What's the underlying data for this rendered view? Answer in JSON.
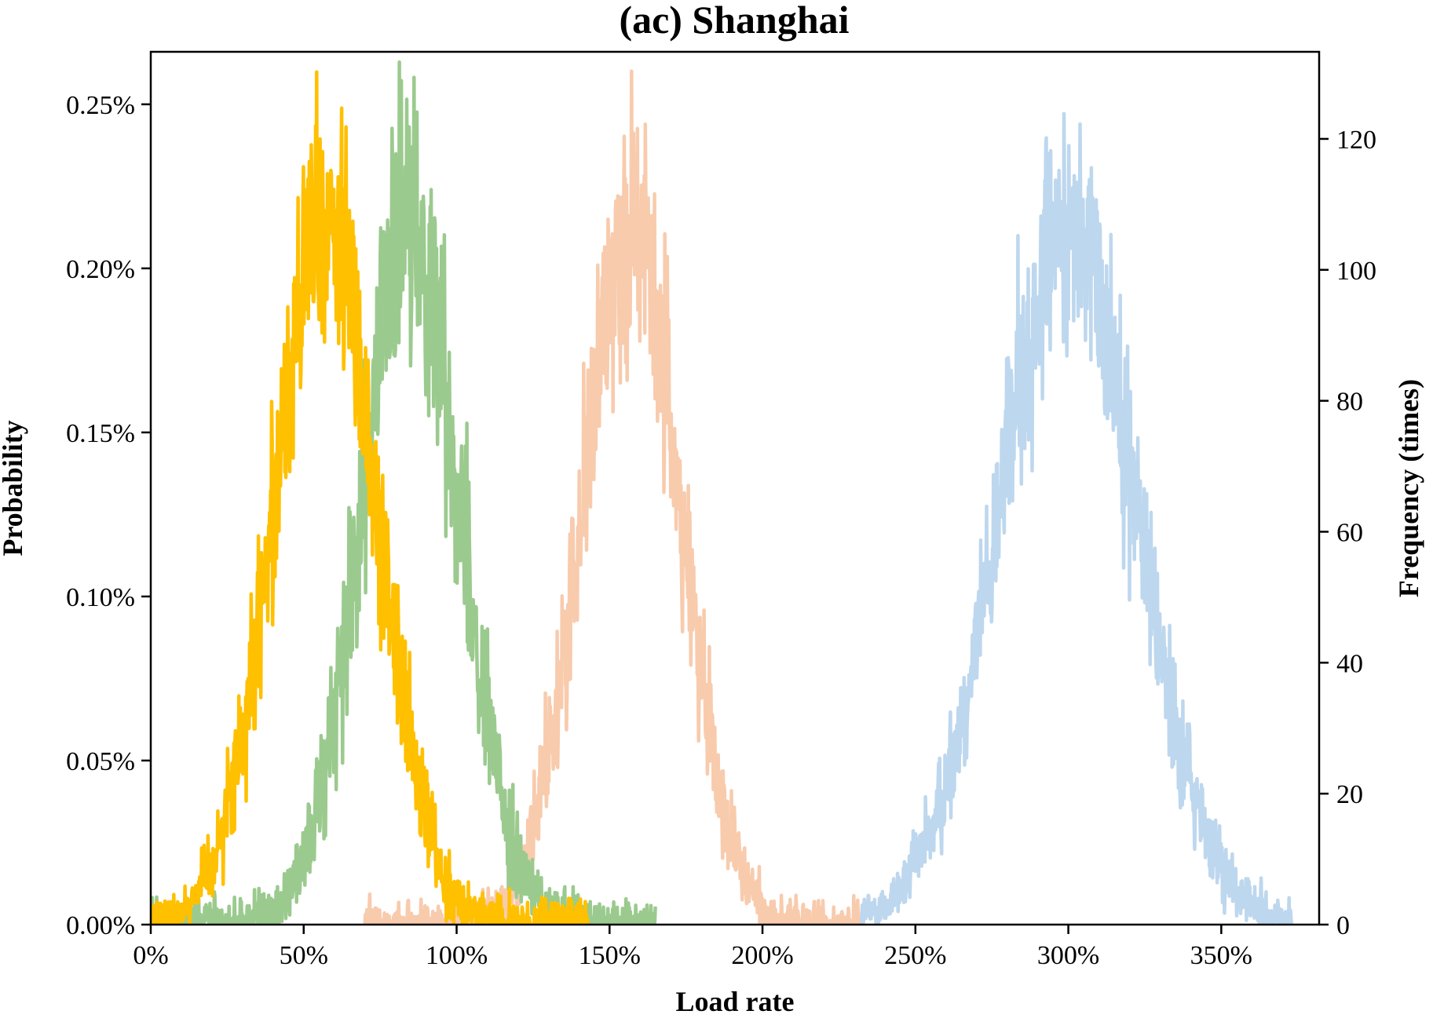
{
  "chart_data": {
    "type": "line",
    "title": "(ac) Shanghai",
    "xlabel": "Load rate",
    "ylabel": "Probability",
    "y2label": "Frequency (times)",
    "xlim": [
      0,
      3.82
    ],
    "ylim": [
      0,
      0.00266
    ],
    "y2lim": [
      0,
      133.3
    ],
    "x_ticks": [
      0,
      0.5,
      1.0,
      1.5,
      2.0,
      2.5,
      3.0,
      3.5
    ],
    "x_tick_labels": [
      "0%",
      "50%",
      "100%",
      "150%",
      "200%",
      "250%",
      "300%",
      "350%"
    ],
    "y_ticks": [
      0,
      0.0005,
      0.001,
      0.0015,
      0.002,
      0.0025
    ],
    "y_tick_labels": [
      "0.00%",
      "0.05%",
      "0.10%",
      "0.15%",
      "0.20%",
      "0.25%"
    ],
    "y2_ticks": [
      0,
      20,
      40,
      60,
      80,
      100,
      120
    ],
    "y2_tick_labels": [
      "0",
      "20",
      "40",
      "60",
      "80",
      "100",
      "120"
    ],
    "grid": false,
    "legend": "none",
    "series": [
      {
        "color": "#bdd7ee",
        "mean": 3.0,
        "sd": 0.225,
        "x_start": 2.32,
        "x_end": 3.73,
        "peak": 0.00212,
        "noise": 0.00018
      },
      {
        "color": "#f8cbad",
        "mean": 1.57,
        "sd": 0.16,
        "x_start": 0.7,
        "x_end": 2.32,
        "peak": 0.00212,
        "noise": 0.00019
      },
      {
        "color": "#9bca8e",
        "mean": 0.85,
        "sd": 0.162,
        "x_start": 0.0,
        "x_end": 1.65,
        "peak": 0.00212,
        "noise": 0.0002
      },
      {
        "color": "#ffc000",
        "mean": 0.57,
        "sd": 0.17,
        "x_start": 0.0,
        "x_end": 1.43,
        "peak": 0.00212,
        "noise": 0.00019
      }
    ]
  }
}
